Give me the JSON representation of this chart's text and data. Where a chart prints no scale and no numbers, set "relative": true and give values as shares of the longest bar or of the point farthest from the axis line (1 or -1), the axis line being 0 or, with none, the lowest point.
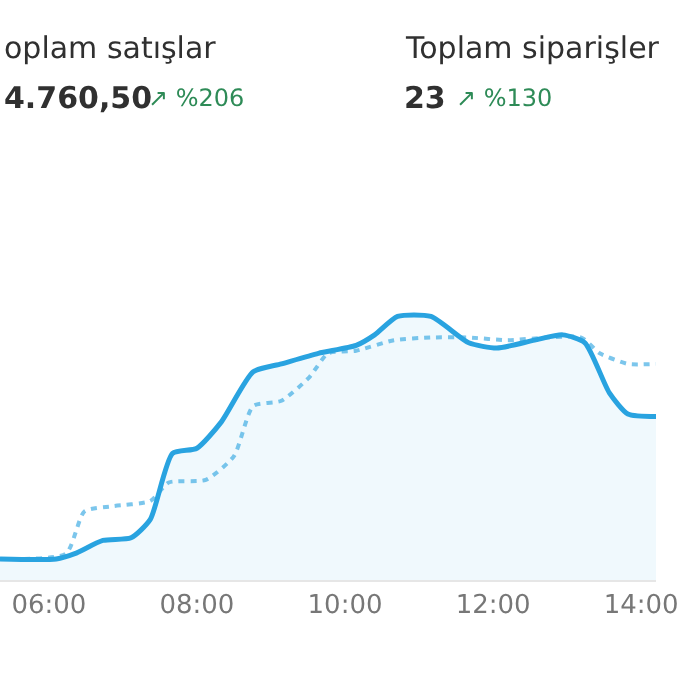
{
  "chart_data": {
    "type": "area",
    "relative": true,
    "legend": false,
    "xlim": [
      5.34,
      14.2
    ],
    "xticks": [
      {
        "value": 6,
        "label": "06:00"
      },
      {
        "value": 8,
        "label": "08:00"
      },
      {
        "value": 10,
        "label": "10:00"
      },
      {
        "value": 12,
        "label": "12:00"
      },
      {
        "value": 14,
        "label": "14:00"
      }
    ],
    "tick_labels": "x",
    "annotations": [
      "oplam satışlar",
      "4.760,50",
      "↗ %206",
      "Toplam siparişler",
      "23",
      "↗ %130"
    ],
    "series": [
      {
        "color": "#29a3e0",
        "line_style": "solid",
        "x": [
          5.34,
          6.1,
          6.35,
          6.73,
          7.11,
          7.37,
          7.67,
          8.0,
          8.33,
          8.76,
          9.14,
          9.64,
          10.15,
          10.4,
          10.71,
          11.16,
          11.67,
          12.05,
          12.56,
          12.94,
          13.24,
          13.57,
          13.82,
          14.2
        ],
        "values": [
          0.08,
          0.08,
          0.1,
          0.15,
          0.16,
          0.23,
          0.48,
          0.5,
          0.6,
          0.79,
          0.82,
          0.86,
          0.89,
          0.93,
          1.0,
          1.0,
          0.9,
          0.88,
          0.91,
          0.93,
          0.9,
          0.71,
          0.63,
          0.62
        ]
      },
      {
        "type": "line",
        "color": "#7cc6ec",
        "line_style": "dotted",
        "x": [
          5.34,
          6.23,
          6.48,
          6.86,
          7.37,
          7.62,
          8.12,
          8.5,
          8.76,
          9.14,
          9.52,
          9.77,
          10.15,
          10.66,
          11.16,
          11.67,
          12.18,
          13.19,
          13.44,
          13.82,
          14.2
        ],
        "values": [
          0.08,
          0.1,
          0.26,
          0.28,
          0.3,
          0.37,
          0.38,
          0.47,
          0.66,
          0.68,
          0.77,
          0.86,
          0.87,
          0.91,
          0.92,
          0.92,
          0.91,
          0.92,
          0.86,
          0.82,
          0.82
        ]
      }
    ]
  }
}
